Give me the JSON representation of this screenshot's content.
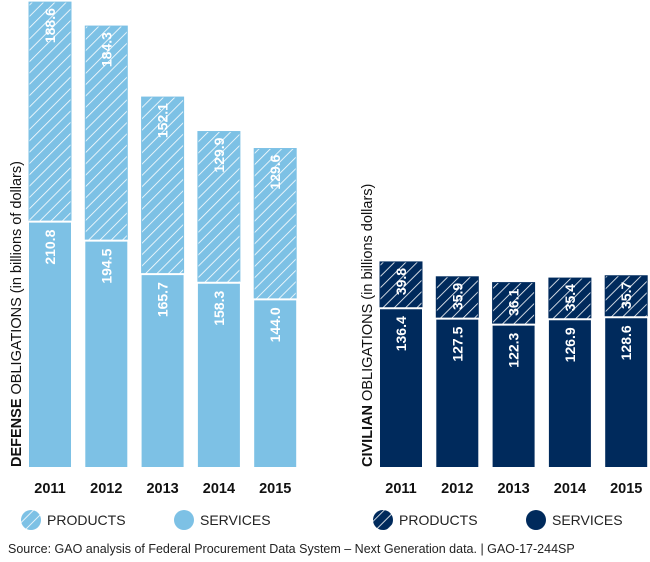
{
  "chart_data": [
    {
      "type": "bar",
      "stacked": true,
      "ylabel_bold": "DEFENSE",
      "ylabel_rest": " OBLIGATIONS  (in billions of dollars)",
      "categories": [
        "2011",
        "2012",
        "2013",
        "2014",
        "2015"
      ],
      "series": [
        {
          "name": "SERVICES",
          "values": [
            210.8,
            194.5,
            165.7,
            158.3,
            144.0
          ],
          "pattern": "solid"
        },
        {
          "name": "PRODUCTS",
          "values": [
            188.6,
            184.3,
            152.1,
            129.9,
            129.6
          ],
          "pattern": "hatched"
        }
      ],
      "color": "#7dc1e5",
      "legend": "bottom"
    },
    {
      "type": "bar",
      "stacked": true,
      "ylabel_bold": "CIVILIAN",
      "ylabel_rest": " OBLIGATIONS  (in billions dollars)",
      "categories": [
        "2011",
        "2012",
        "2013",
        "2014",
        "2015"
      ],
      "series": [
        {
          "name": "SERVICES",
          "values": [
            136.4,
            127.5,
            122.3,
            126.9,
            128.6
          ],
          "pattern": "solid"
        },
        {
          "name": "PRODUCTS",
          "values": [
            39.8,
            35.9,
            36.1,
            35.4,
            35.7
          ],
          "pattern": "hatched"
        }
      ],
      "color": "#002a5c",
      "legend": "bottom"
    }
  ],
  "source": "Source: GAO analysis of Federal Procurement Data System – Next Generation data.  |  GAO-17-244SP"
}
